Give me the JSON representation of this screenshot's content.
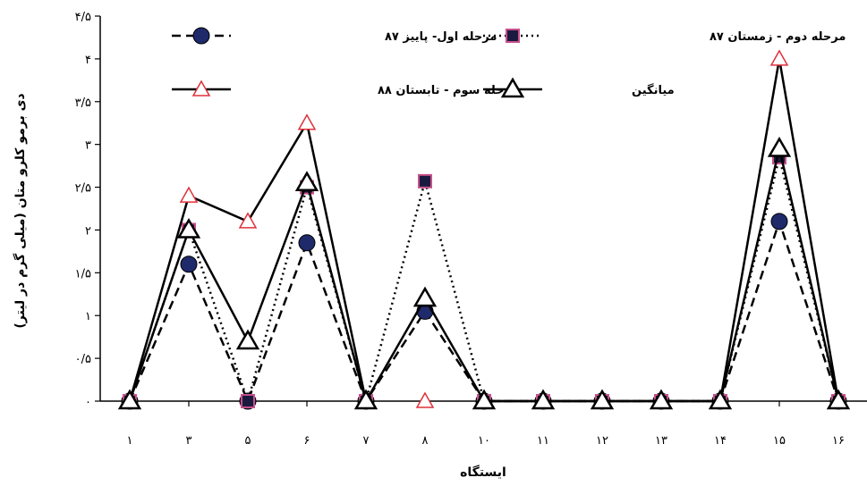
{
  "chart_data": {
    "type": "line",
    "categories": [
      "۱",
      "۳",
      "۵",
      "۶",
      "۷",
      "۸",
      "۱۰",
      "۱۱",
      "۱۲",
      "۱۳",
      "۱۴",
      "۱۵",
      "۱۶"
    ],
    "xlabel": "ایستگاه",
    "ylabel": "دی برمو کلرو متان (میلی گرم در لیتر)",
    "ylim": [
      0,
      4.5
    ],
    "yticks": [
      0,
      0.5,
      1,
      1.5,
      2,
      2.5,
      3,
      3.5,
      4,
      4.5
    ],
    "ytick_labels": [
      "۰",
      "۰/۵",
      "۱",
      "۱/۵",
      "۲",
      "۲/۵",
      "۳",
      "۳/۵",
      "۴",
      "۴/۵"
    ],
    "grid": false,
    "legend_position": "top",
    "series": [
      {
        "name": "مرحله اول- پاییز ۸۷",
        "values": [
          0,
          1.6,
          0,
          1.85,
          0,
          1.05,
          0,
          0,
          0,
          0,
          0,
          2.1,
          0
        ],
        "line_style": "dashed",
        "marker": "circle",
        "color": "#1f2a6b"
      },
      {
        "name": "مرحله دوم - زمستان ۸۷",
        "values": [
          0,
          2.0,
          0,
          2.5,
          0,
          2.57,
          0,
          0,
          0,
          0,
          0,
          2.85,
          0
        ],
        "line_style": "dotted",
        "marker": "square",
        "color": "#c8508a"
      },
      {
        "name": "مرحله سوم - تابستان ۸۸",
        "values": [
          0,
          2.4,
          2.1,
          3.25,
          0,
          0,
          0,
          0,
          0,
          0,
          0,
          4.0,
          0
        ],
        "line_style": "solid",
        "marker": "open-triangle",
        "color": "#e0303a",
        "line_breaks_at": [
          5
        ]
      },
      {
        "name": "میانگین",
        "values": [
          0,
          2.0,
          0.7,
          2.55,
          0,
          1.2,
          0,
          0,
          0,
          0,
          0,
          2.95,
          0
        ],
        "line_style": "solid",
        "marker": "filled-triangle",
        "color": "#000000"
      }
    ]
  }
}
